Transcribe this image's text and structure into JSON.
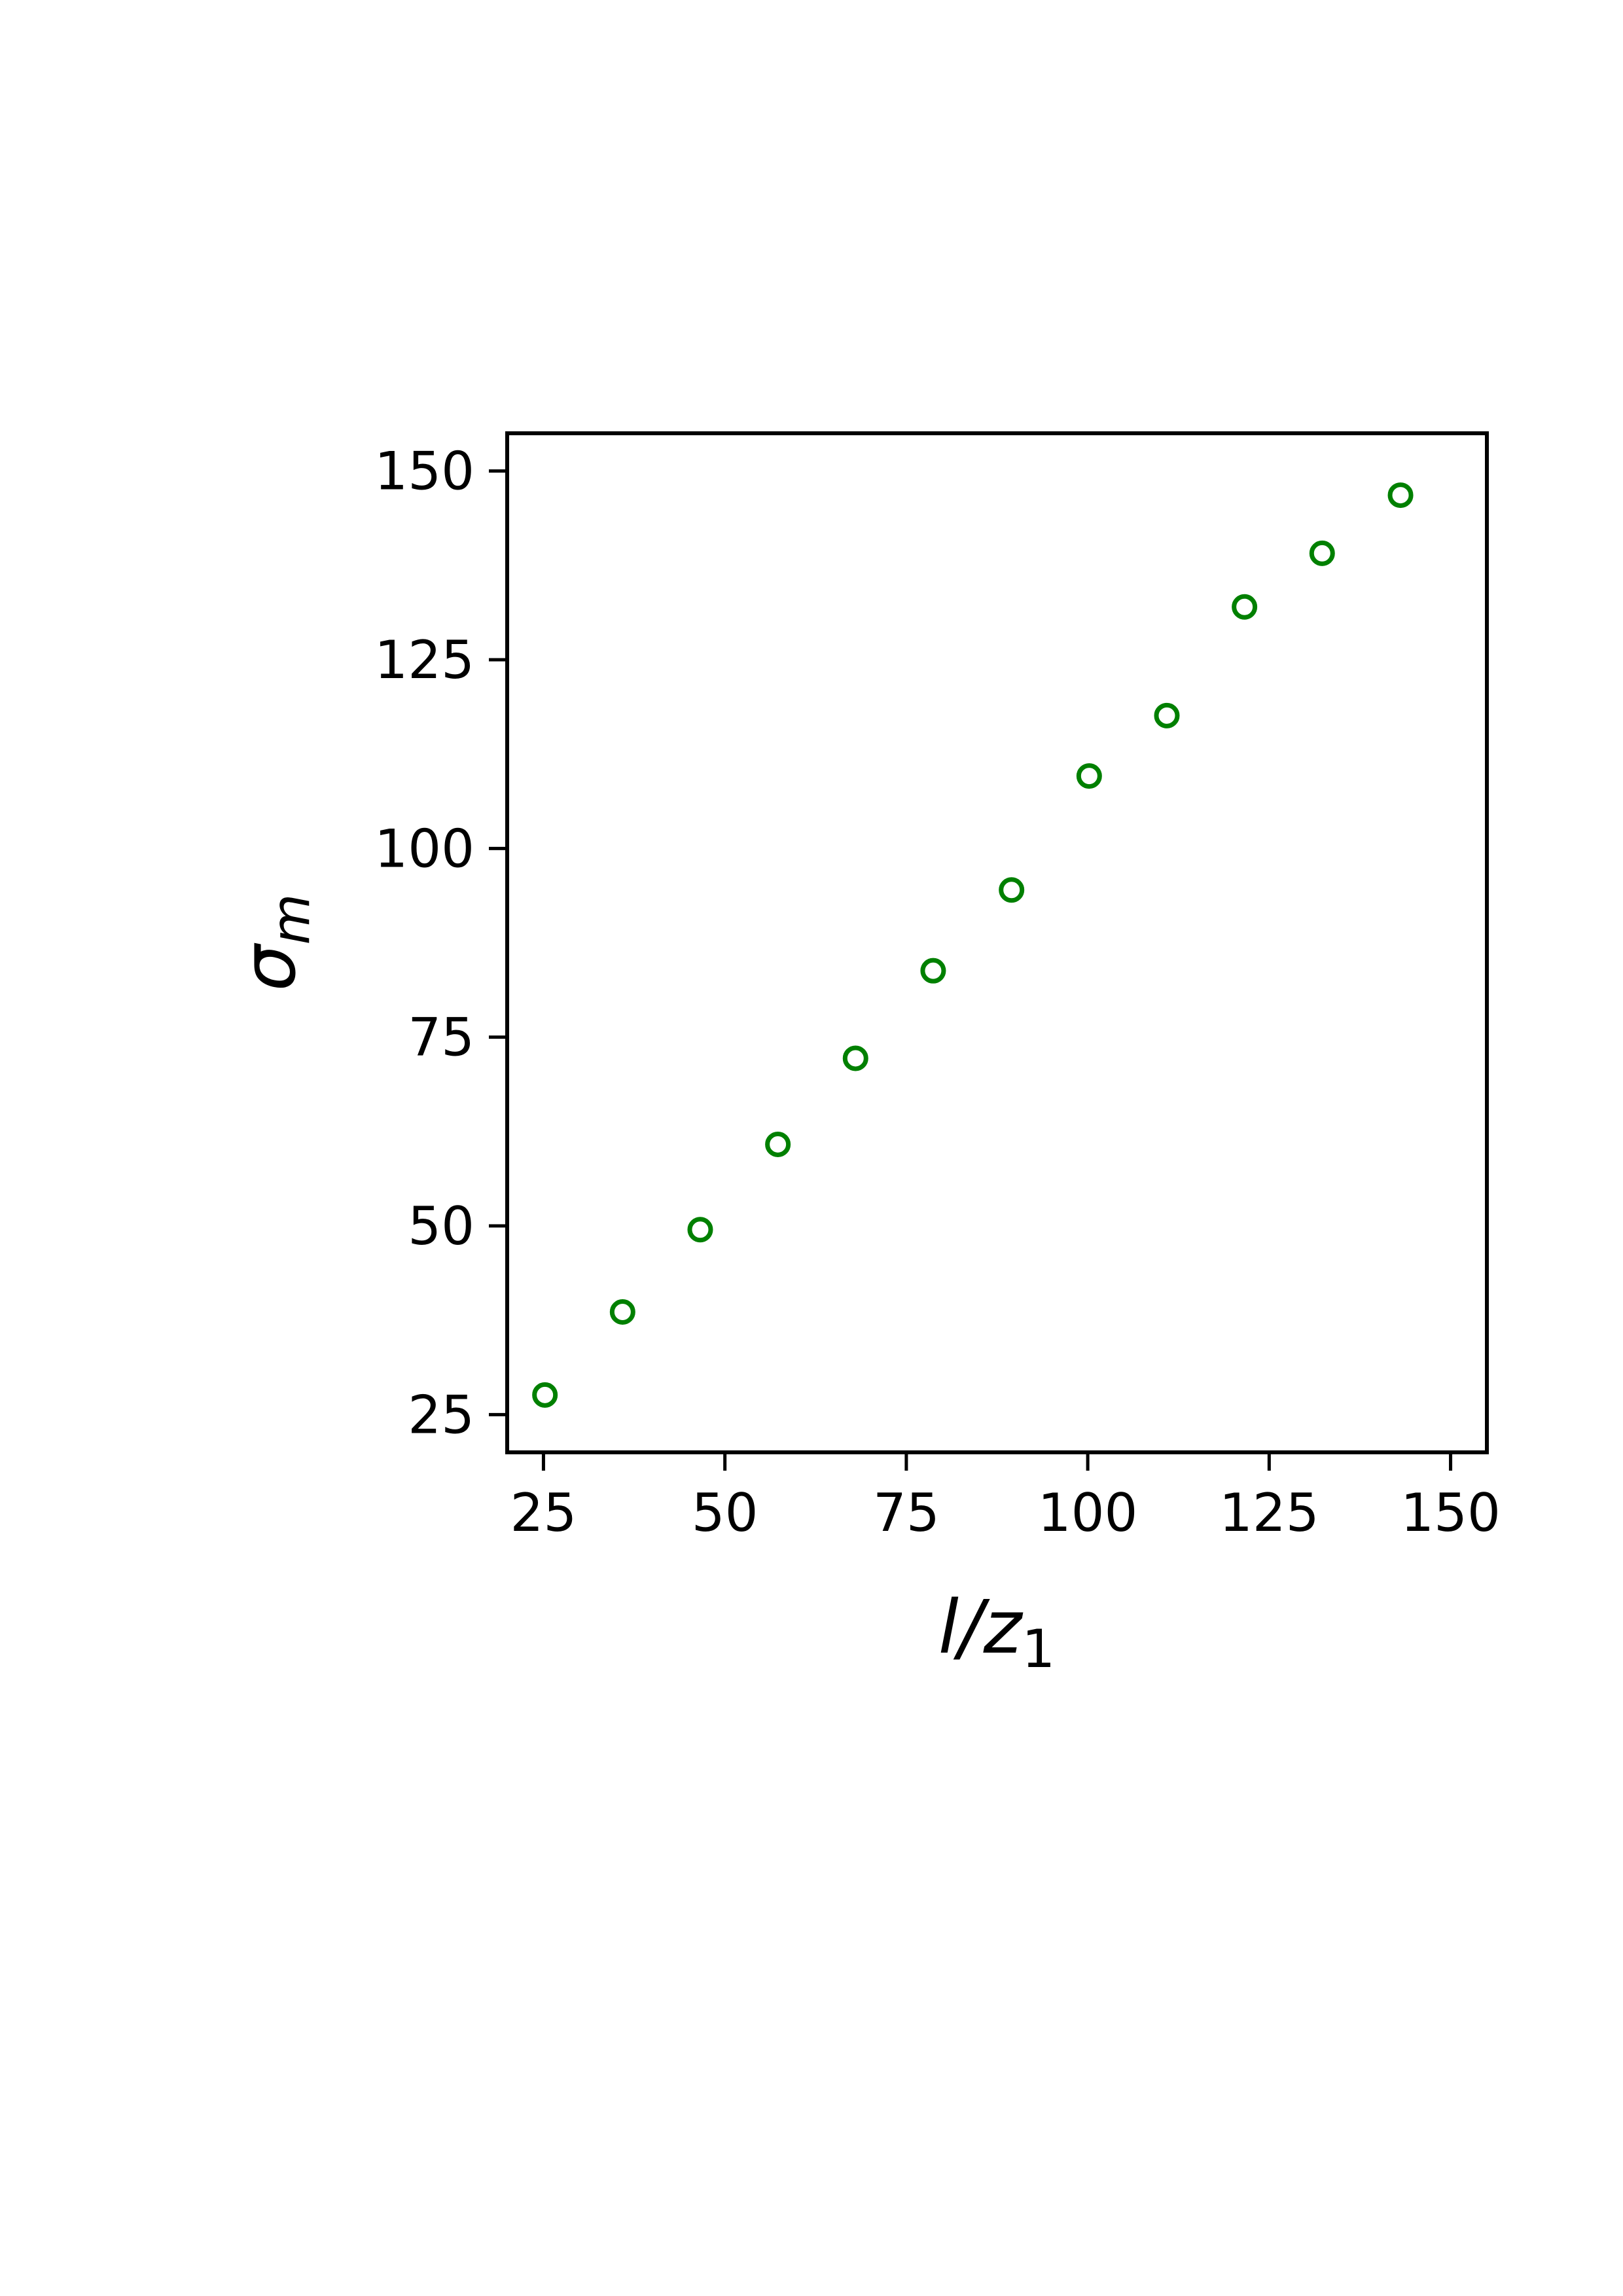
{
  "chart_data": {
    "type": "scatter",
    "xlabel": "l/z",
    "xlabel_sub": "1",
    "ylabel": "σ",
    "ylabel_sub": "m",
    "xlim": [
      20,
      155
    ],
    "ylim": [
      20,
      155
    ],
    "xticks": [
      25,
      50,
      75,
      100,
      125,
      150
    ],
    "yticks": [
      25,
      50,
      75,
      100,
      125,
      150
    ],
    "marker": "open-circle",
    "color": "#008000",
    "series": [
      {
        "x": [
          25.2,
          35.9,
          46.6,
          57.3,
          68.0,
          78.7,
          89.5,
          100.2,
          110.9,
          121.6,
          132.3,
          143.1
        ],
        "y": [
          27.6,
          38.6,
          49.5,
          60.8,
          72.2,
          83.8,
          94.5,
          109.6,
          117.6,
          132.0,
          139.1,
          146.8
        ]
      }
    ]
  }
}
